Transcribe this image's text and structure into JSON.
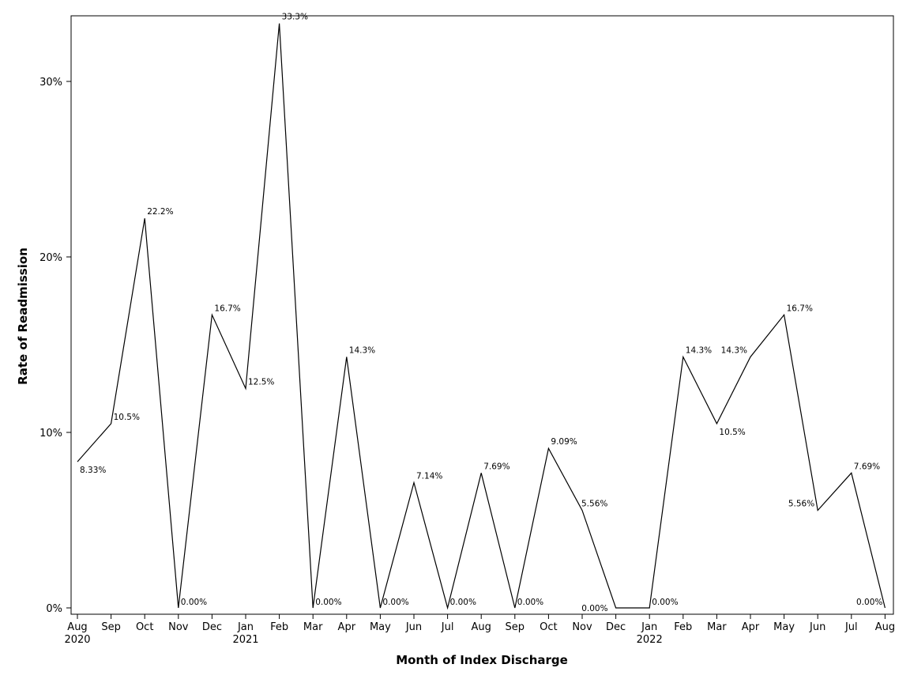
{
  "chart_data": {
    "type": "line",
    "title": "",
    "xlabel": "Month of Index Discharge",
    "ylabel": "Rate of Readmission",
    "ylim": [
      0,
      0.33
    ],
    "yticks": [
      0,
      0.1,
      0.2,
      0.3
    ],
    "ytick_labels": [
      "0%",
      "10%",
      "20%",
      "30%"
    ],
    "grid": false,
    "legend": "none",
    "line_color": "#000000",
    "categories": [
      "Aug",
      "Sep",
      "Oct",
      "Nov",
      "Dec",
      "Jan",
      "Feb",
      "Mar",
      "Apr",
      "May",
      "Jun",
      "Jul",
      "Aug",
      "Sep",
      "Oct",
      "Nov",
      "Dec",
      "Jan",
      "Feb",
      "Mar",
      "Apr",
      "May",
      "Jun",
      "Jul",
      "Aug"
    ],
    "year_labels": {
      "0": "2020",
      "5": "2021",
      "17": "2022"
    },
    "values": [
      0.0833,
      0.105,
      0.222,
      0.0,
      0.167,
      0.125,
      0.333,
      0.0,
      0.143,
      0.0,
      0.0714,
      0.0,
      0.0769,
      0.0,
      0.0909,
      0.0556,
      0.0,
      0.0,
      0.143,
      0.105,
      0.143,
      0.167,
      0.0556,
      0.0769,
      0.0
    ],
    "data_labels": [
      "8.33%",
      "10.5%",
      "22.2%",
      "0.00%",
      "16.7%",
      "12.5%",
      "33.3%",
      "0.00%",
      "14.3%",
      "0.00%",
      "7.14%",
      "0.00%",
      "7.69%",
      "0.00%",
      "9.09%",
      "5.56%",
      "",
      "0.00%",
      "14.3%",
      "10.5%",
      "14.3%",
      "16.7%",
      "5.56%",
      "7.69%",
      "0.00%"
    ]
  }
}
